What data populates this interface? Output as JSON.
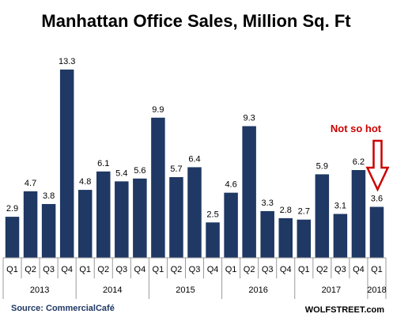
{
  "chart_data": {
    "type": "bar",
    "title": "Manhattan Office Sales, Million Sq. Ft",
    "xlabel": "",
    "ylabel": "",
    "ylim": [
      0,
      14
    ],
    "grid": false,
    "legend": "none",
    "bar_color": "#1f3864",
    "categories": [
      "Q1",
      "Q2",
      "Q3",
      "Q4",
      "Q1",
      "Q2",
      "Q3",
      "Q4",
      "Q1",
      "Q2",
      "Q3",
      "Q4",
      "Q1",
      "Q2",
      "Q3",
      "Q4",
      "Q1",
      "Q2",
      "Q3",
      "Q4",
      "Q1"
    ],
    "years": [
      "2013",
      "2014",
      "2015",
      "2016",
      "2017",
      "2018"
    ],
    "values": [
      2.9,
      4.7,
      3.8,
      13.3,
      4.8,
      6.1,
      5.4,
      5.6,
      9.9,
      5.7,
      6.4,
      2.5,
      4.6,
      9.3,
      3.3,
      2.8,
      2.7,
      5.9,
      3.1,
      6.2,
      3.6
    ],
    "data_labels": [
      "2.9",
      "4.7",
      "3.8",
      "13.3",
      "4.8",
      "6.1",
      "5.4",
      "5.6",
      "9.9",
      "5.7",
      "6.4",
      "2.5",
      "4.6",
      "9.3",
      "3.3",
      "2.8",
      "2.7",
      "5.9",
      "3.1",
      "6.2",
      "3.6"
    ],
    "annotation": {
      "text": "Not so hot",
      "color": "#cc0000",
      "target_index": 20
    },
    "source": "Source: CommercialCafé",
    "watermark": "WOLFSTREET.com"
  }
}
